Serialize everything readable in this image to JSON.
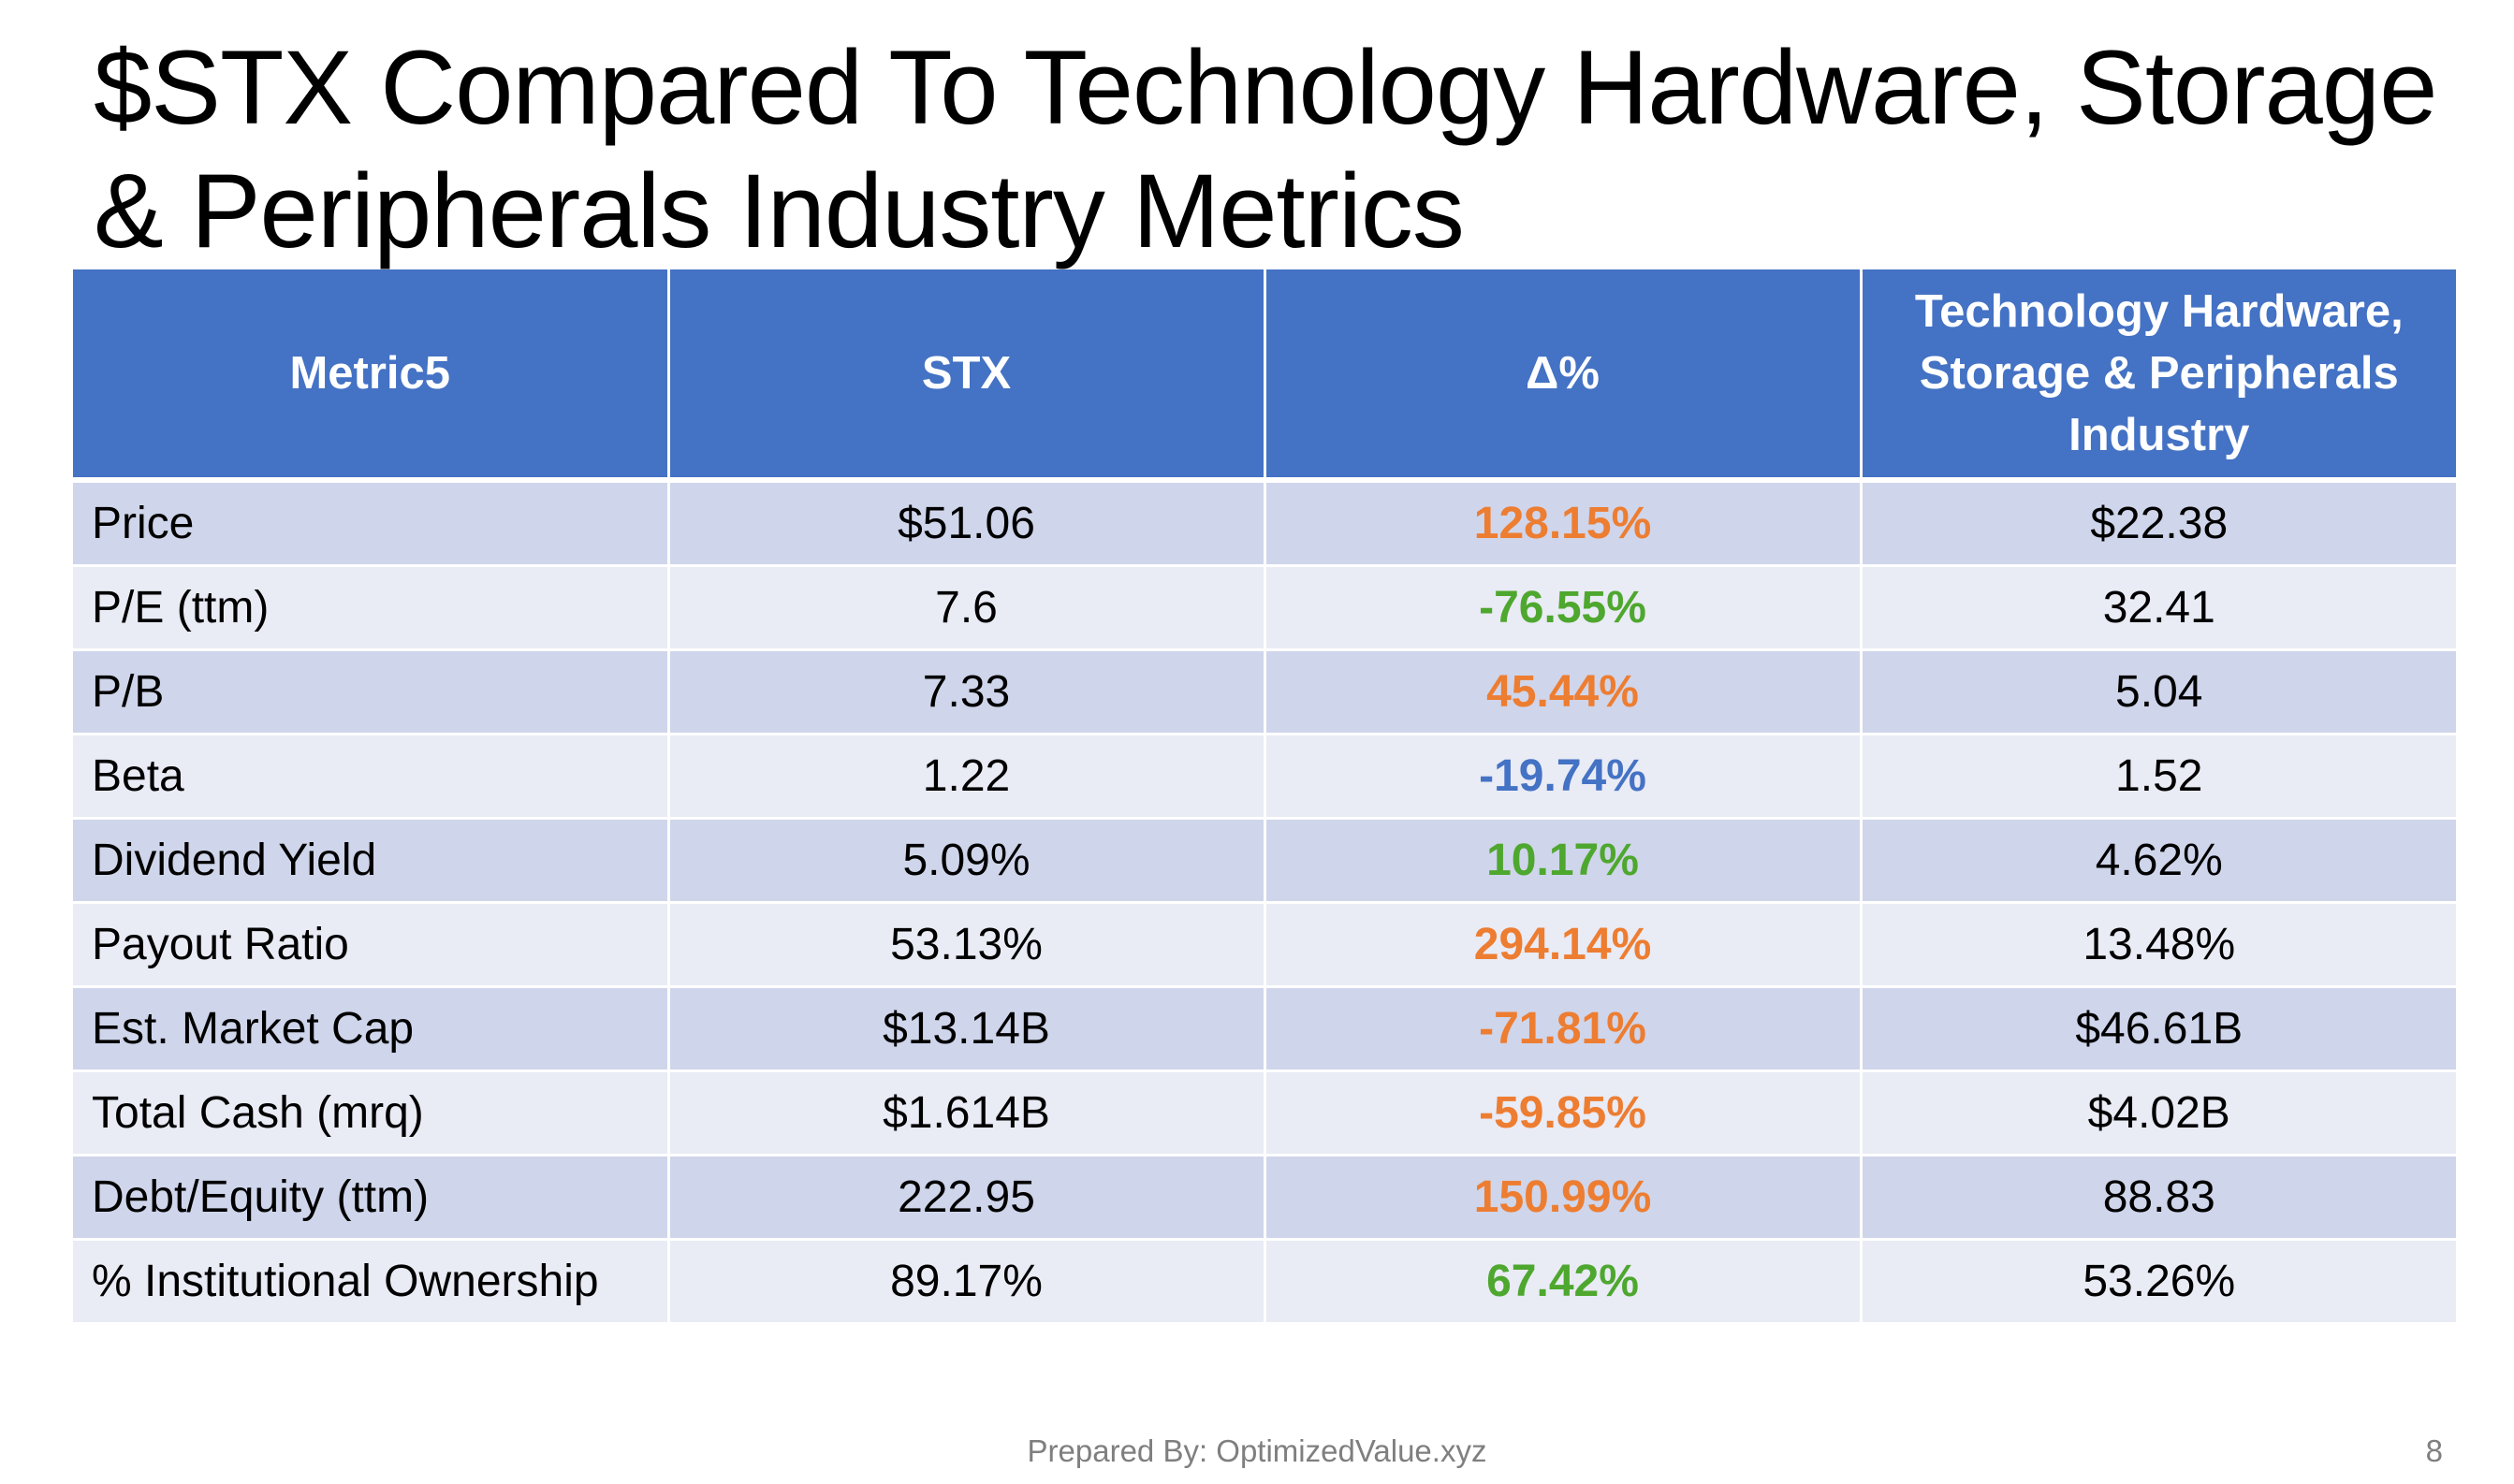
{
  "slide": {
    "title_line1": "$STX Compared To Technology Hardware, Storage",
    "title_line2": "& Peripherals Industry Metrics",
    "footer": "Prepared By: OptimizedValue.xyz",
    "page_number": "8"
  },
  "colors": {
    "header_bg": "#4472c4",
    "row_dark": "#cfd5ea",
    "row_light": "#e9ebf5",
    "delta_orange": "#ed7d31",
    "delta_green": "#4ea72e",
    "delta_blue": "#4472c4"
  },
  "table": {
    "headers": [
      "Metric5",
      "STX",
      "Δ%",
      "Technology Hardware, Storage & Peripherals Industry"
    ],
    "rows": [
      {
        "metric": "Price",
        "stx": "$51.06",
        "delta": "128.15%",
        "delta_color": "orange",
        "industry": "$22.38"
      },
      {
        "metric": "P/E (ttm)",
        "stx": "7.6",
        "delta": "-76.55%",
        "delta_color": "green",
        "industry": "32.41"
      },
      {
        "metric": "P/B",
        "stx": "7.33",
        "delta": "45.44%",
        "delta_color": "orange",
        "industry": "5.04"
      },
      {
        "metric": "Beta",
        "stx": "1.22",
        "delta": "-19.74%",
        "delta_color": "blue",
        "industry": "1.52"
      },
      {
        "metric": "Dividend Yield",
        "stx": "5.09%",
        "delta": "10.17%",
        "delta_color": "green",
        "industry": "4.62%"
      },
      {
        "metric": "Payout Ratio",
        "stx": "53.13%",
        "delta": "294.14%",
        "delta_color": "orange",
        "industry": "13.48%"
      },
      {
        "metric": "Est. Market Cap",
        "stx": "$13.14B",
        "delta": "-71.81%",
        "delta_color": "orange",
        "industry": "$46.61B"
      },
      {
        "metric": "Total Cash (mrq)",
        "stx": "$1.614B",
        "delta": "-59.85%",
        "delta_color": "orange",
        "industry": "$4.02B"
      },
      {
        "metric": "Debt/Equity (ttm)",
        "stx": "222.95",
        "delta": "150.99%",
        "delta_color": "orange",
        "industry": "88.83"
      },
      {
        "metric": "% Institutional Ownership",
        "stx": "89.17%",
        "delta": "67.42%",
        "delta_color": "green",
        "industry": "53.26%"
      }
    ]
  }
}
